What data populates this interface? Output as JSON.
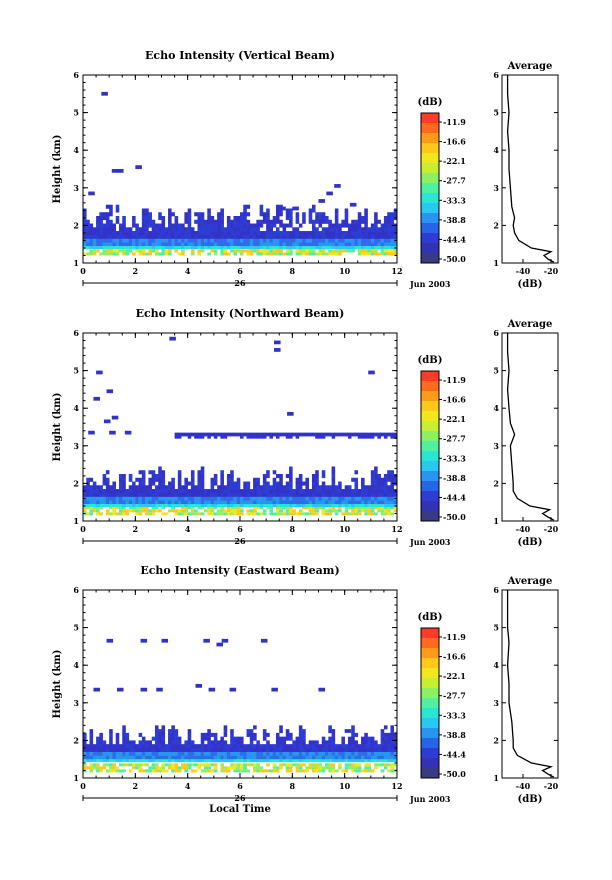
{
  "chart_data": [
    {
      "type": "heatmap",
      "title": "Echo Intensity (Vertical Beam)",
      "ylabel": "Height (km)",
      "xticks": [
        "0",
        "2",
        "4",
        "6",
        "8",
        "10",
        "12"
      ],
      "yticks": [
        "1",
        "2",
        "3",
        "4",
        "5",
        "6"
      ],
      "xlim": [
        0,
        12
      ],
      "ylim": [
        1,
        6
      ],
      "date_day": "26",
      "date_label": "Jun 2003",
      "colorbar": {
        "unit": "(dB)",
        "ticks": [
          "-11.9",
          "-16.6",
          "-22.1",
          "-27.7",
          "-33.3",
          "-38.8",
          "-44.4",
          "-50.0"
        ]
      },
      "profile": {
        "title": "Average",
        "xlabel": "(dB)",
        "xticks": [
          "-40",
          "-20"
        ],
        "yticks": [
          "1",
          "2",
          "3",
          "4",
          "5",
          "6"
        ],
        "xlim": [
          -55,
          -15
        ]
      },
      "echo_layer": {
        "strong_band_km": [
          1.2,
          1.45
        ],
        "weak_band_km": [
          1.45,
          2.5
        ]
      },
      "sparse_echoes": [
        {
          "t": 0.7,
          "h": 5.45
        },
        {
          "t": 1.1,
          "h": 3.4
        },
        {
          "t": 1.3,
          "h": 3.4
        },
        {
          "t": 2.0,
          "h": 3.5
        },
        {
          "t": 0.2,
          "h": 2.8
        },
        {
          "t": 7.5,
          "h": 2.4
        },
        {
          "t": 8.0,
          "h": 2.4
        },
        {
          "t": 9.3,
          "h": 2.8
        },
        {
          "t": 9.6,
          "h": 3.0
        },
        {
          "t": 9.0,
          "h": 2.6
        },
        {
          "t": 10.2,
          "h": 2.5
        }
      ],
      "mean_profile": [
        {
          "h": 1.02,
          "db": -18
        },
        {
          "h": 1.1,
          "db": -22
        },
        {
          "h": 1.2,
          "db": -25
        },
        {
          "h": 1.3,
          "db": -20
        },
        {
          "h": 1.4,
          "db": -34
        },
        {
          "h": 1.6,
          "db": -43
        },
        {
          "h": 1.8,
          "db": -46
        },
        {
          "h": 2.0,
          "db": -47
        },
        {
          "h": 2.2,
          "db": -46
        },
        {
          "h": 2.5,
          "db": -48
        },
        {
          "h": 3.0,
          "db": -49
        },
        {
          "h": 3.5,
          "db": -50
        },
        {
          "h": 4.0,
          "db": -50
        },
        {
          "h": 4.5,
          "db": -51
        },
        {
          "h": 5.0,
          "db": -50
        },
        {
          "h": 5.5,
          "db": -51
        },
        {
          "h": 6.0,
          "db": -51
        }
      ]
    },
    {
      "type": "heatmap",
      "title": "Echo Intensity (Northward Beam)",
      "ylabel": "Height (km)",
      "xticks": [
        "0",
        "2",
        "4",
        "6",
        "8",
        "10",
        "12"
      ],
      "yticks": [
        "1",
        "2",
        "3",
        "4",
        "5",
        "6"
      ],
      "xlim": [
        0,
        12
      ],
      "ylim": [
        1,
        6
      ],
      "date_day": "26",
      "date_label": "Jun 2003",
      "colorbar": {
        "unit": "(dB)",
        "ticks": [
          "-11.9",
          "-16.6",
          "-22.1",
          "-27.7",
          "-33.3",
          "-38.8",
          "-44.4",
          "-50.0"
        ]
      },
      "profile": {
        "title": "Average",
        "xlabel": "(dB)",
        "xticks": [
          "-40",
          "-20"
        ],
        "yticks": [
          "1",
          "2",
          "3",
          "4",
          "5",
          "6"
        ],
        "xlim": [
          -55,
          -15
        ]
      },
      "echo_layer": {
        "strong_band_km": [
          1.15,
          1.45
        ],
        "weak_band_km": [
          1.45,
          2.4
        ]
      },
      "upper_layer": {
        "h": 3.25,
        "t_start": 3.5,
        "t_end": 12
      },
      "sparse_echoes": [
        {
          "t": 3.3,
          "h": 5.8
        },
        {
          "t": 7.3,
          "h": 5.7
        },
        {
          "t": 7.3,
          "h": 5.5
        },
        {
          "t": 0.5,
          "h": 4.9
        },
        {
          "t": 0.9,
          "h": 4.4
        },
        {
          "t": 0.4,
          "h": 4.2
        },
        {
          "t": 0.8,
          "h": 3.6
        },
        {
          "t": 1.1,
          "h": 3.7
        },
        {
          "t": 1.6,
          "h": 3.3
        },
        {
          "t": 0.2,
          "h": 3.3
        },
        {
          "t": 7.8,
          "h": 3.8
        },
        {
          "t": 10.9,
          "h": 4.9
        },
        {
          "t": 1.0,
          "h": 3.3
        }
      ],
      "mean_profile": [
        {
          "h": 1.02,
          "db": -18
        },
        {
          "h": 1.1,
          "db": -22
        },
        {
          "h": 1.2,
          "db": -26
        },
        {
          "h": 1.3,
          "db": -21
        },
        {
          "h": 1.4,
          "db": -35
        },
        {
          "h": 1.6,
          "db": -44
        },
        {
          "h": 1.8,
          "db": -47
        },
        {
          "h": 2.0,
          "db": -47
        },
        {
          "h": 2.5,
          "db": -48
        },
        {
          "h": 3.0,
          "db": -49
        },
        {
          "h": 3.3,
          "db": -46
        },
        {
          "h": 3.6,
          "db": -49
        },
        {
          "h": 4.0,
          "db": -50
        },
        {
          "h": 4.5,
          "db": -51
        },
        {
          "h": 5.0,
          "db": -50
        },
        {
          "h": 5.5,
          "db": -51
        },
        {
          "h": 6.0,
          "db": -51
        }
      ]
    },
    {
      "type": "heatmap",
      "title": "Echo Intensity (Eastward Beam)",
      "ylabel": "Height (km)",
      "xlabel": "Local Time",
      "xticks": [
        "0",
        "2",
        "4",
        "6",
        "8",
        "10",
        "12"
      ],
      "yticks": [
        "1",
        "2",
        "3",
        "4",
        "5",
        "6"
      ],
      "xlim": [
        0,
        12
      ],
      "ylim": [
        1,
        6
      ],
      "date_day": "26",
      "date_label": "Jun 2003",
      "colorbar": {
        "unit": "(dB)",
        "ticks": [
          "-11.9",
          "-16.6",
          "-22.1",
          "-27.7",
          "-33.3",
          "-38.8",
          "-44.4",
          "-50.0"
        ]
      },
      "profile": {
        "title": "Average",
        "xlabel": "(dB)",
        "xticks": [
          "-40",
          "-20"
        ],
        "yticks": [
          "1",
          "2",
          "3",
          "4",
          "5",
          "6"
        ],
        "xlim": [
          -55,
          -15
        ]
      },
      "echo_layer": {
        "strong_band_km": [
          1.15,
          1.5
        ],
        "weak_band_km": [
          1.5,
          2.4
        ]
      },
      "sparse_echoes": [
        {
          "t": 0.9,
          "h": 4.6
        },
        {
          "t": 2.2,
          "h": 4.6
        },
        {
          "t": 3.0,
          "h": 4.6
        },
        {
          "t": 4.6,
          "h": 4.6
        },
        {
          "t": 5.3,
          "h": 4.6
        },
        {
          "t": 6.8,
          "h": 4.6
        },
        {
          "t": 5.1,
          "h": 4.5
        },
        {
          "t": 1.3,
          "h": 3.3
        },
        {
          "t": 2.2,
          "h": 3.3
        },
        {
          "t": 2.8,
          "h": 3.3
        },
        {
          "t": 4.3,
          "h": 3.4
        },
        {
          "t": 4.8,
          "h": 3.3
        },
        {
          "t": 5.6,
          "h": 3.3
        },
        {
          "t": 7.2,
          "h": 3.3
        },
        {
          "t": 9.0,
          "h": 3.3
        },
        {
          "t": 0.4,
          "h": 3.3
        },
        {
          "t": 10.0,
          "h": 2.2
        },
        {
          "t": 10.2,
          "h": 1.9
        }
      ],
      "mean_profile": [
        {
          "h": 1.02,
          "db": -18
        },
        {
          "h": 1.1,
          "db": -22
        },
        {
          "h": 1.2,
          "db": -26
        },
        {
          "h": 1.3,
          "db": -20
        },
        {
          "h": 1.4,
          "db": -34
        },
        {
          "h": 1.6,
          "db": -44
        },
        {
          "h": 1.8,
          "db": -47
        },
        {
          "h": 2.0,
          "db": -47
        },
        {
          "h": 2.5,
          "db": -48
        },
        {
          "h": 3.0,
          "db": -50
        },
        {
          "h": 3.5,
          "db": -50
        },
        {
          "h": 4.0,
          "db": -51
        },
        {
          "h": 4.6,
          "db": -50
        },
        {
          "h": 5.0,
          "db": -51
        },
        {
          "h": 5.5,
          "db": -51
        },
        {
          "h": 6.0,
          "db": -51
        }
      ]
    }
  ]
}
